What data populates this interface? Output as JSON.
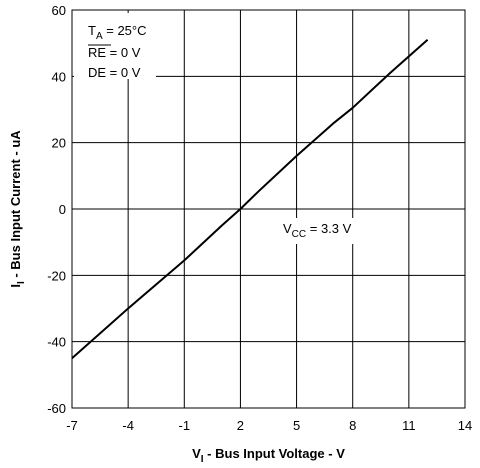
{
  "chart_data": {
    "type": "line",
    "xlabel": {
      "main": "V",
      "sub": "I",
      "rest": " - Bus Input Voltage - V"
    },
    "ylabel": {
      "main": "I",
      "sub": "I",
      "rest": " - Bus Input Current - uA"
    },
    "xlim": [
      -7,
      14
    ],
    "ylim": [
      -60,
      60
    ],
    "x_ticks": [
      -7,
      -4,
      -1,
      2,
      5,
      8,
      11,
      14
    ],
    "y_ticks": [
      -60,
      -40,
      -20,
      0,
      20,
      40,
      60
    ],
    "grid": true,
    "series": [
      {
        "x": [
          -7,
          -4,
          -1,
          1,
          2,
          3,
          5,
          7,
          8,
          10,
          12
        ],
        "y": [
          -45,
          -30,
          -15.5,
          -5,
          0,
          5.5,
          16,
          26,
          30.5,
          41,
          51
        ]
      }
    ],
    "annotations": {
      "ta": {
        "main": "T",
        "sub": "A",
        "rest": " = 25°C"
      },
      "re": {
        "main": "RE",
        "rest": " = 0 V"
      },
      "de": {
        "text": "DE = 0 V"
      },
      "vcc": {
        "main": "V",
        "sub": "CC",
        "rest": " = 3.3 V"
      }
    }
  }
}
